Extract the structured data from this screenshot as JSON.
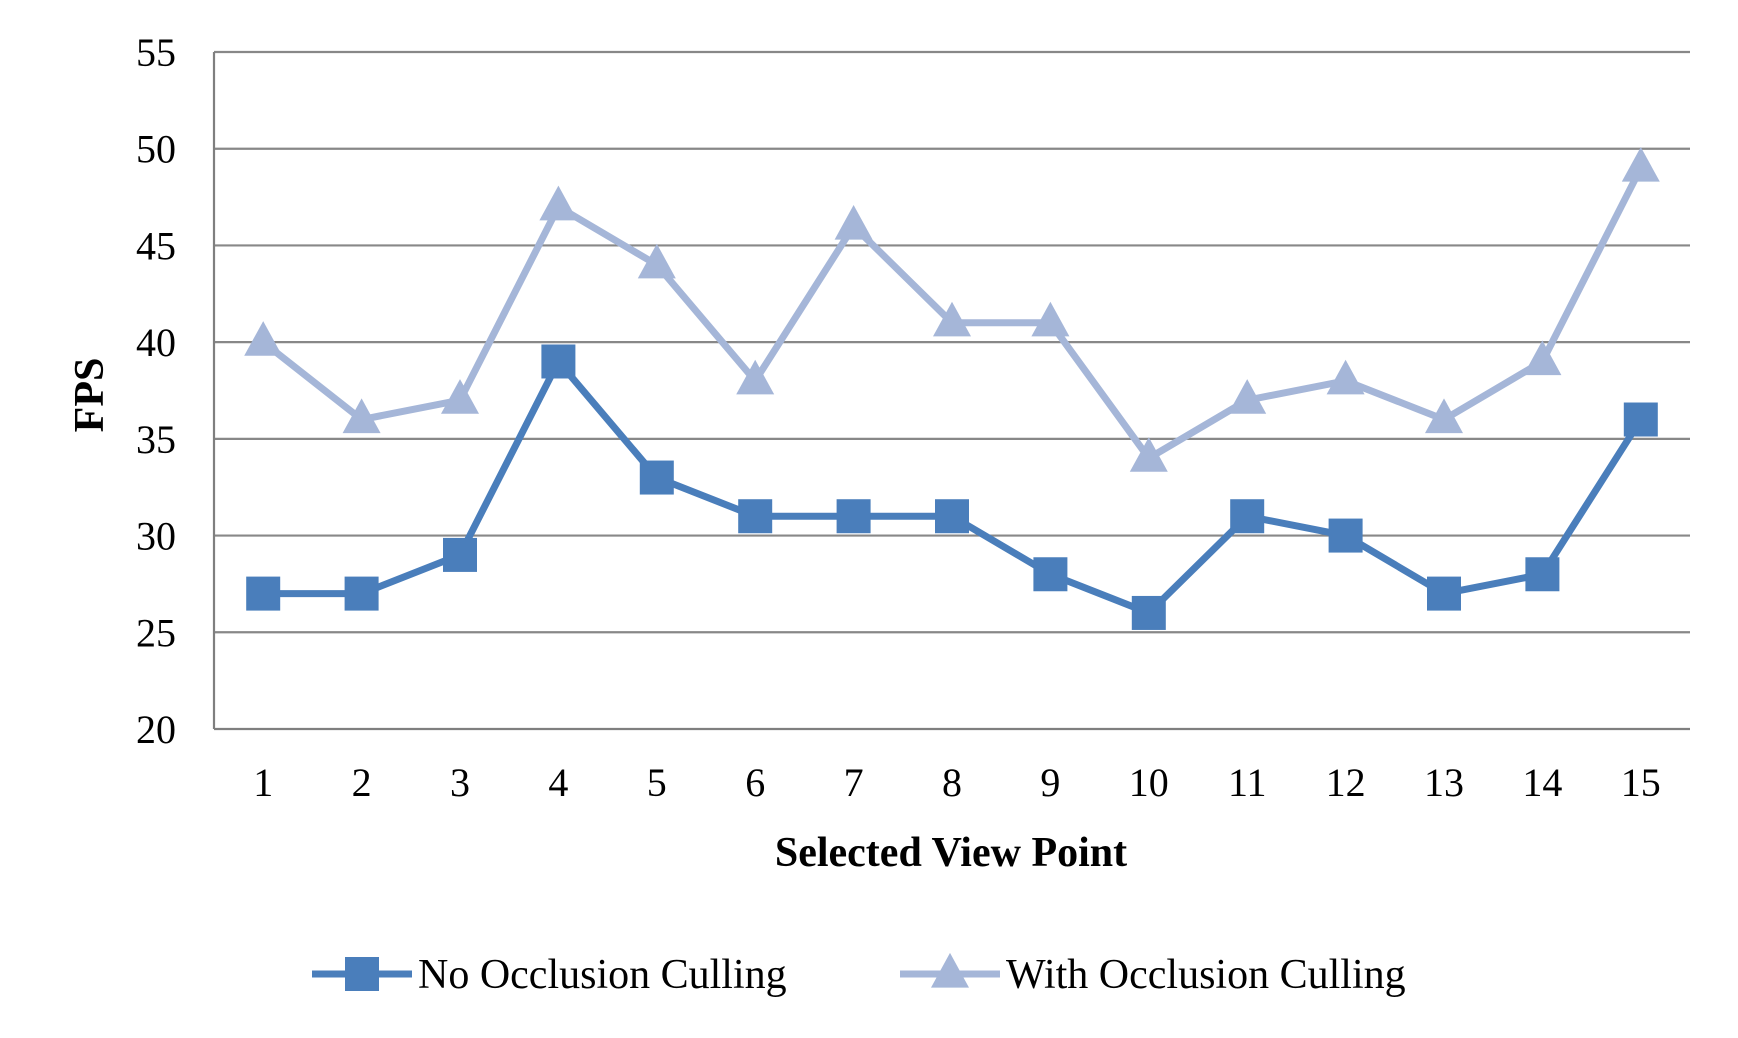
{
  "chart_data": {
    "type": "line",
    "title": "",
    "xlabel": "Selected View Point",
    "ylabel": "FPS",
    "categories": [
      "1",
      "2",
      "3",
      "4",
      "5",
      "6",
      "7",
      "8",
      "9",
      "10",
      "11",
      "12",
      "13",
      "14",
      "15"
    ],
    "ylim": [
      20,
      55
    ],
    "yticks": [
      20,
      25,
      30,
      35,
      40,
      45,
      50,
      55
    ],
    "grid": true,
    "legend_position": "bottom",
    "series": [
      {
        "name": "No Occlusion Culling",
        "color": "#4a7ebb",
        "marker": "square",
        "values": [
          27,
          27,
          29,
          39,
          33,
          31,
          31,
          31,
          28,
          26,
          31,
          30,
          27,
          28,
          36
        ]
      },
      {
        "name": "With Occlusion Culling",
        "color": "#a5b6d8",
        "marker": "triangle",
        "values": [
          40,
          36,
          37,
          47,
          44,
          38,
          46,
          41,
          41,
          34,
          37,
          38,
          36,
          39,
          49
        ]
      }
    ]
  }
}
